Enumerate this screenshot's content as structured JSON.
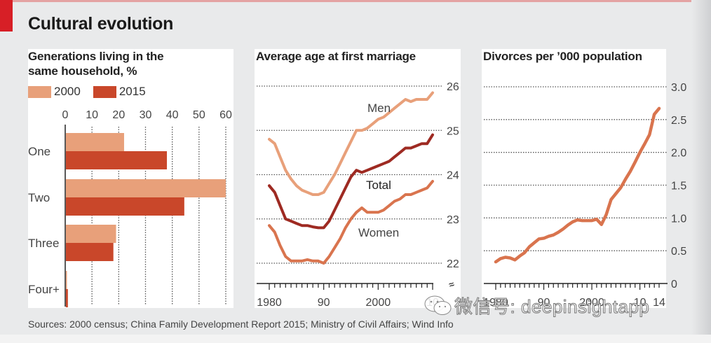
{
  "title": "Cultural evolution",
  "source": "Sources: 2000 census; China Family Development Report 2015; Ministry of Civil Affairs; Wind Info",
  "watermark": "微信号: deepinsightapp",
  "colors": {
    "accent_red": "#d71f26",
    "light_orange": "#e8a07a",
    "dark_orange": "#c9472a",
    "total_dark_red": "#9e2a22",
    "men_line": "#e8a07a",
    "women_line": "#d9744e",
    "divorce_line": "#d9744e"
  },
  "chart_data": [
    {
      "type": "bar",
      "orientation": "horizontal",
      "title": "Generations living in the same household, %",
      "title_lines": [
        "Generations living in the",
        "same household, %"
      ],
      "categories": [
        "One",
        "Two",
        "Three",
        "Four+"
      ],
      "series": [
        {
          "name": "2000",
          "values": [
            22,
            60,
            19,
            0.5
          ]
        },
        {
          "name": "2015",
          "values": [
            38,
            44.5,
            18,
            1
          ]
        }
      ],
      "xlim": [
        0,
        60
      ],
      "xticks": [
        "0",
        "10",
        "20",
        "30",
        "40",
        "50",
        "60"
      ],
      "legend_position": "top-left",
      "grid": true
    },
    {
      "type": "line",
      "title": "Average age at first marriage",
      "ylim": [
        22,
        26
      ],
      "yticks": [
        "22",
        "23",
        "24",
        "25",
        "26"
      ],
      "y_axis_broken": true,
      "xlim": [
        1980,
        2010
      ],
      "xticks": [
        "1980",
        "90",
        "2000",
        "10"
      ],
      "x": [
        1980,
        1981,
        1982,
        1983,
        1984,
        1985,
        1986,
        1987,
        1988,
        1989,
        1990,
        1991,
        1992,
        1993,
        1994,
        1995,
        1996,
        1997,
        1998,
        1999,
        2000,
        2001,
        2002,
        2003,
        2004,
        2005,
        2006,
        2007,
        2008,
        2009,
        2010
      ],
      "series": [
        {
          "name": "Men",
          "label": "Men",
          "values": [
            24.8,
            24.7,
            24.4,
            24.1,
            23.9,
            23.75,
            23.65,
            23.6,
            23.55,
            23.55,
            23.6,
            23.8,
            24.0,
            24.25,
            24.5,
            24.75,
            25.0,
            25.0,
            25.05,
            25.15,
            25.25,
            25.3,
            25.4,
            25.5,
            25.6,
            25.7,
            25.65,
            25.7,
            25.7,
            25.7,
            25.85
          ]
        },
        {
          "name": "Total",
          "label": "Total",
          "values": [
            23.75,
            23.6,
            23.3,
            23.0,
            22.95,
            22.9,
            22.85,
            22.85,
            22.82,
            22.8,
            22.8,
            22.95,
            23.2,
            23.45,
            23.7,
            23.95,
            24.1,
            24.05,
            24.1,
            24.15,
            24.2,
            24.25,
            24.3,
            24.4,
            24.5,
            24.6,
            24.6,
            24.65,
            24.7,
            24.7,
            24.9
          ]
        },
        {
          "name": "Women",
          "label": "Women",
          "values": [
            22.85,
            22.7,
            22.4,
            22.15,
            22.05,
            22.05,
            22.05,
            22.08,
            22.05,
            22.05,
            22.0,
            22.15,
            22.35,
            22.55,
            22.8,
            23.0,
            23.15,
            23.25,
            23.15,
            23.15,
            23.15,
            23.2,
            23.3,
            23.4,
            23.45,
            23.55,
            23.55,
            23.6,
            23.65,
            23.7,
            23.85
          ]
        }
      ],
      "grid": true
    },
    {
      "type": "line",
      "title": "Divorces per ’000 population",
      "ylim": [
        0,
        3.0
      ],
      "yticks": [
        "0",
        "0.5",
        "1.0",
        "1.5",
        "2.0",
        "2.5",
        "3.0"
      ],
      "xlim": [
        1980,
        2014
      ],
      "xticks": [
        "1980",
        "90",
        "2000",
        "10",
        "14"
      ],
      "xtick_values": [
        1980,
        1990,
        2000,
        2010,
        2014
      ],
      "x": [
        1980,
        1981,
        1982,
        1983,
        1984,
        1985,
        1986,
        1987,
        1988,
        1989,
        1990,
        1991,
        1992,
        1993,
        1994,
        1995,
        1996,
        1997,
        1998,
        1999,
        2000,
        2001,
        2002,
        2003,
        2004,
        2005,
        2006,
        2007,
        2008,
        2009,
        2010,
        2011,
        2012,
        2013,
        2014
      ],
      "series": [
        {
          "name": "Divorces",
          "values": [
            0.33,
            0.38,
            0.4,
            0.39,
            0.36,
            0.42,
            0.47,
            0.56,
            0.62,
            0.68,
            0.69,
            0.72,
            0.74,
            0.78,
            0.83,
            0.89,
            0.94,
            0.97,
            0.96,
            0.96,
            0.96,
            0.98,
            0.9,
            1.05,
            1.28,
            1.37,
            1.46,
            1.59,
            1.71,
            1.85,
            2.0,
            2.13,
            2.27,
            2.58,
            2.67
          ]
        }
      ],
      "grid": true
    }
  ]
}
